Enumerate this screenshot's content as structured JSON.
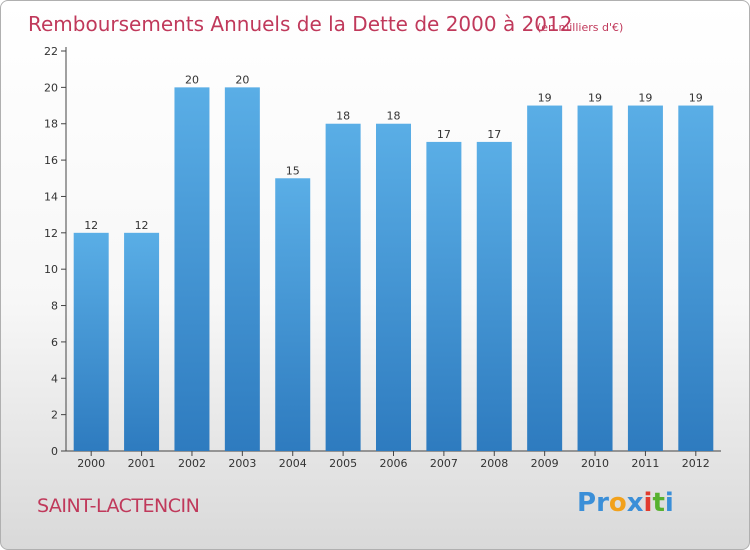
{
  "chart_data": {
    "type": "bar",
    "title": "Remboursements Annuels de la Dette de 2000 à 2012",
    "subtitle": "(en milliers d'€)",
    "categories": [
      "2000",
      "2001",
      "2002",
      "2003",
      "2004",
      "2005",
      "2006",
      "2007",
      "2008",
      "2009",
      "2010",
      "2011",
      "2012"
    ],
    "values": [
      12,
      12,
      20,
      20,
      15,
      18,
      18,
      17,
      17,
      19,
      19,
      19,
      19
    ],
    "ylim": [
      0,
      22
    ],
    "yticks": [
      0,
      2,
      4,
      6,
      8,
      10,
      12,
      14,
      16,
      18,
      20,
      22
    ],
    "grid": false,
    "bar_colors": {
      "top": "#5aaee6",
      "bottom": "#2e7bbf"
    }
  },
  "commune": "SAINT-LACTENCIN",
  "logo": {
    "letters": [
      "P",
      "r",
      "o",
      "x",
      "i",
      "t",
      "i"
    ],
    "colors": [
      "#3b8fd8",
      "#3b8fd8",
      "#f2a11b",
      "#3b8fd8",
      "#e23b2e",
      "#58b12f",
      "#3b8fd8"
    ]
  },
  "colors": {
    "accent": "#c0395b",
    "axis": "#333333"
  }
}
